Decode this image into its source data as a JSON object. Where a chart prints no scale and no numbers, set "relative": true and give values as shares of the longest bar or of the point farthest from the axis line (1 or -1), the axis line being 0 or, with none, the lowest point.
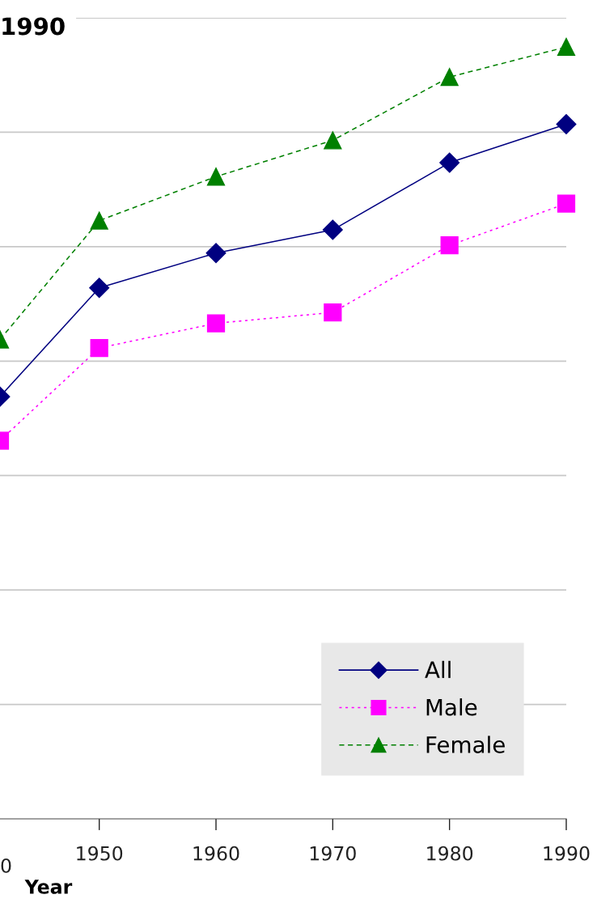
{
  "chart_data": {
    "type": "line",
    "title": "1990",
    "xlabel": "Year",
    "relative": true,
    "xlim": [
      1941.5,
      1990
    ],
    "xticks": [
      1950,
      1960,
      1970,
      1980,
      1990
    ],
    "grid": "y",
    "legend": "bottom right",
    "annotations": [
      "0"
    ],
    "series": [
      {
        "name": "All",
        "color": "#000080",
        "marker": "diamond",
        "line_style": "solid",
        "x": [
          1941.5,
          1950,
          1960,
          1970,
          1980,
          1990
        ],
        "values": [
          0.547,
          0.688,
          0.733,
          0.763,
          0.85,
          0.9
        ]
      },
      {
        "name": "Male",
        "color": "#ff00ff",
        "marker": "square",
        "line_style": "dotted",
        "x": [
          1941.5,
          1950,
          1960,
          1970,
          1980,
          1990
        ],
        "values": [
          0.49,
          0.61,
          0.642,
          0.656,
          0.743,
          0.797
        ]
      },
      {
        "name": "Female",
        "color": "#008000",
        "marker": "triangle",
        "line_style": "dashed",
        "x": [
          1941.5,
          1950,
          1960,
          1970,
          1980,
          1990
        ],
        "values": [
          0.621,
          0.775,
          0.832,
          0.879,
          0.961,
          1
        ]
      }
    ]
  }
}
